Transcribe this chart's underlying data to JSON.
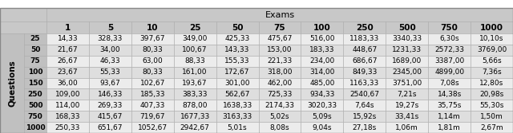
{
  "title": "Exams",
  "row_header": "Questions",
  "col_headers": [
    "1",
    "5",
    "10",
    "25",
    "50",
    "75",
    "100",
    "250",
    "500",
    "750",
    "1000"
  ],
  "row_labels": [
    "25",
    "50",
    "75",
    "100",
    "150",
    "250",
    "500",
    "750",
    "1000"
  ],
  "table_data": [
    [
      "14,33",
      "328,33",
      "397,67",
      "349,00",
      "425,33",
      "475,67",
      "516,00",
      "1183,33",
      "3340,33",
      "6,30s",
      "10,10s"
    ],
    [
      "21,67",
      "34,00",
      "80,33",
      "100,67",
      "143,33",
      "153,00",
      "183,33",
      "448,67",
      "1231,33",
      "2572,33",
      "3769,00"
    ],
    [
      "26,67",
      "46,33",
      "63,00",
      "88,33",
      "155,33",
      "221,33",
      "234,00",
      "686,67",
      "1689,00",
      "3387,00",
      "5,66s"
    ],
    [
      "23,67",
      "55,33",
      "80,33",
      "161,00",
      "172,67",
      "318,00",
      "314,00",
      "849,33",
      "2345,00",
      "4899,00",
      "7,36s"
    ],
    [
      "36,00",
      "93,67",
      "102,67",
      "193,67",
      "301,00",
      "462,00",
      "485,00",
      "1163,33",
      "3751,00",
      "7,08s",
      "12,80s"
    ],
    [
      "109,00",
      "146,33",
      "185,33",
      "383,33",
      "562,67",
      "725,33",
      "934,33",
      "2540,67",
      "7,21s",
      "14,38s",
      "20,98s"
    ],
    [
      "114,00",
      "269,33",
      "407,33",
      "878,00",
      "1638,33",
      "2174,33",
      "3020,33",
      "7,64s",
      "19,27s",
      "35,75s",
      "55,30s"
    ],
    [
      "168,33",
      "415,67",
      "719,67",
      "1677,33",
      "3163,33",
      "5,02s",
      "5,09s",
      "15,92s",
      "33,41s",
      "1,14m",
      "1,50m"
    ],
    [
      "250,33",
      "651,67",
      "1052,67",
      "2942,67",
      "5,01s",
      "8,08s",
      "9,04s",
      "27,18s",
      "1,06m",
      "1,81m",
      "2,67m"
    ]
  ],
  "header_bg": "#c8c8c8",
  "subheader_bg": "#c8c8c8",
  "row_label_bg": "#c0c0c0",
  "questions_bg": "#c0c0c0",
  "odd_row_bg": "#ececec",
  "even_row_bg": "#dedede",
  "border_color": "#aaaaaa",
  "text_color": "#000000",
  "font_size": 6.5,
  "header_font_size": 7.5,
  "title_font_size": 8.0,
  "fig_width": 6.4,
  "fig_height": 1.67,
  "dpi": 100
}
